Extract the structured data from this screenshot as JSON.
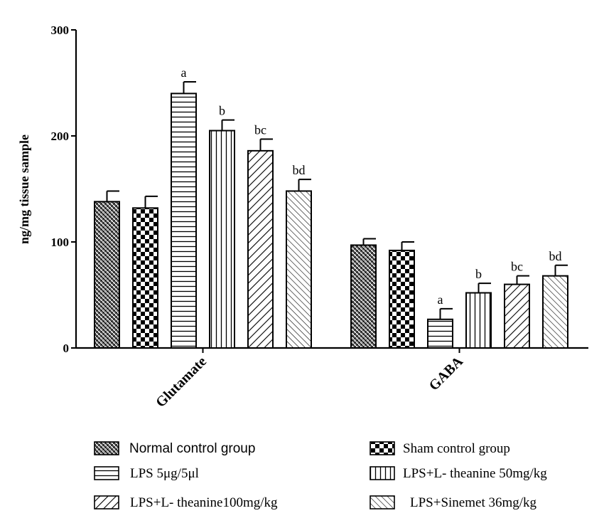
{
  "chart_data": {
    "type": "bar",
    "ylabel": "ng/mg tissue sample",
    "xlabel": "",
    "ylim": [
      0,
      300
    ],
    "yticks": [
      "0",
      "100",
      "200",
      "300"
    ],
    "categories": [
      "Glutamate",
      "GABA"
    ],
    "grid": false,
    "legend_position": "bottom",
    "error_bars": true,
    "series": [
      {
        "name": "Normal control group",
        "pattern": "crosshatch-fine",
        "values": [
          138,
          97
        ],
        "errors": [
          10,
          6
        ],
        "labels": [
          "",
          ""
        ]
      },
      {
        "name": "Sham control group",
        "pattern": "checker",
        "values": [
          132,
          92
        ],
        "errors": [
          11,
          8
        ],
        "labels": [
          "",
          ""
        ]
      },
      {
        "name": "LPS 5μg/5μl",
        "pattern": "horizontal",
        "values": [
          240,
          27
        ],
        "errors": [
          11,
          10
        ],
        "labels": [
          "a",
          "a"
        ]
      },
      {
        "name": "LPS+L- theanine 50mg/kg",
        "pattern": "vertical",
        "values": [
          205,
          52
        ],
        "errors": [
          10,
          9
        ],
        "labels": [
          "b",
          "b"
        ]
      },
      {
        "name": "LPS+L- theanine100mg/kg",
        "pattern": "diagonal-up",
        "values": [
          186,
          60
        ],
        "errors": [
          11,
          8
        ],
        "labels": [
          "bc",
          "bc"
        ]
      },
      {
        "name": "LPS+Sinemet 36mg/kg",
        "pattern": "diagonal-down",
        "values": [
          148,
          68
        ],
        "errors": [
          11,
          10
        ],
        "labels": [
          "bd",
          "bd"
        ]
      }
    ]
  }
}
